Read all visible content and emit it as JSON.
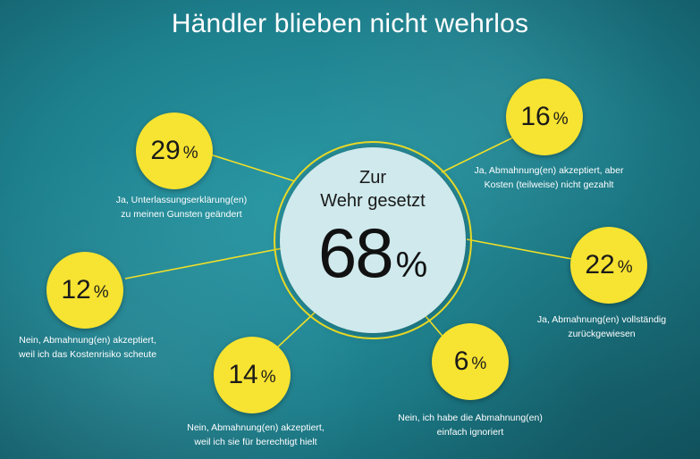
{
  "title": "Händler blieben nicht wehrlos",
  "colors": {
    "bubble": "#f7e331",
    "center": "#cfe9ec",
    "background": "#1d7f8c",
    "line": "#f2e027"
  },
  "center": {
    "label_line1": "Zur",
    "label_line2": "Wehr gesetzt",
    "value": "68",
    "unit": "%"
  },
  "items": [
    {
      "value": "29",
      "unit": "%",
      "caption_line1": "Ja, Unterlassungserklärung(en)",
      "caption_line2": "zu meinen Gunsten geändert"
    },
    {
      "value": "16",
      "unit": "%",
      "caption_line1": "Ja, Abmahnung(en) akzeptiert, aber",
      "caption_line2": "Kosten (teilweise) nicht gezahlt"
    },
    {
      "value": "12",
      "unit": "%",
      "caption_line1": "Nein, Abmahnung(en) akzeptiert,",
      "caption_line2": "weil ich das Kostenrisiko scheute"
    },
    {
      "value": "22",
      "unit": "%",
      "caption_line1": "Ja, Abmahnung(en) vollständig",
      "caption_line2": "zurückgewiesen"
    },
    {
      "value": "14",
      "unit": "%",
      "caption_line1": "Nein, Abmahnung(en) akzeptiert,",
      "caption_line2": "weil ich sie für berechtigt hielt"
    },
    {
      "value": "6",
      "unit": "%",
      "caption_line1": "Nein, ich habe die Abmahnung(en)",
      "caption_line2": "einfach ignoriert"
    }
  ]
}
